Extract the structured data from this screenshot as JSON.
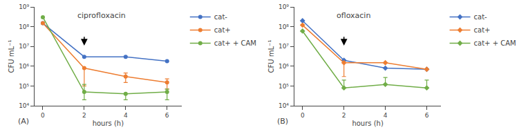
{
  "chart_data": [
    {
      "type": "line",
      "title": "ciprofloxacin",
      "panel_label": "(A)",
      "xlabel": "hours (h)",
      "ylabel": "CFU mL⁻¹",
      "x": [
        0,
        2,
        4,
        6
      ],
      "log": "y",
      "grid": false,
      "legend": "right",
      "marker": "circle",
      "xlim": [
        -0.4,
        6.7
      ],
      "xticks": [
        0,
        2,
        4,
        6
      ],
      "ylim": [
        10000.0,
        1000000000.0
      ],
      "yticks": [
        {
          "value": 10000.0,
          "label": "10⁴"
        },
        {
          "value": 100000.0,
          "label": "10⁵"
        },
        {
          "value": 1000000.0,
          "label": "10⁶"
        },
        {
          "value": 10000000.0,
          "label": "10⁷"
        },
        {
          "value": 100000000.0,
          "label": "10⁸"
        },
        {
          "value": 1000000000.0,
          "label": "10⁹"
        }
      ],
      "series": [
        {
          "name": "cat-",
          "color": "#4472C4",
          "values": [
            150000000.0,
            3000000.0,
            3000000.0,
            1800000.0
          ],
          "yerr_lo": [
            0,
            0,
            0,
            0
          ],
          "yerr_hi": [
            0,
            0,
            0,
            0
          ]
        },
        {
          "name": "cat+",
          "color": "#ED7D31",
          "values": [
            150000000.0,
            800000.0,
            300000.0,
            150000.0
          ],
          "yerr_lo": [
            0,
            700000.0,
            150000.0,
            80000.0
          ],
          "yerr_hi": [
            0,
            0,
            150000.0,
            80000.0
          ]
        },
        {
          "name": "cat+ + CAM",
          "color": "#70AD47",
          "values": [
            300000000.0,
            50000.0,
            40000.0,
            50000.0
          ],
          "yerr_lo": [
            0,
            30000.0,
            20000.0,
            30000.0
          ],
          "yerr_hi": [
            0,
            70000.0,
            0,
            20000.0
          ]
        }
      ],
      "arrow": {
        "x": 2,
        "y_tail": 35000000.0,
        "y_head": 11000000.0
      }
    },
    {
      "type": "line",
      "title": "ofloxacin",
      "panel_label": "(B)",
      "xlabel": "hours (h)",
      "ylabel": "CFU mL⁻¹",
      "x": [
        0,
        2,
        4,
        6
      ],
      "log": "y",
      "grid": false,
      "legend": "right",
      "marker": "diamond",
      "xlim": [
        -0.4,
        6.7
      ],
      "xticks": [
        0,
        2,
        4,
        6
      ],
      "ylim": [
        10000.0,
        1000000000.0
      ],
      "yticks": [
        {
          "value": 10000.0,
          "label": "10⁴"
        },
        {
          "value": 100000.0,
          "label": "10⁵"
        },
        {
          "value": 1000000.0,
          "label": "10⁶"
        },
        {
          "value": 10000000.0,
          "label": "10⁷"
        },
        {
          "value": 100000000.0,
          "label": "10⁸"
        },
        {
          "value": 1000000000.0,
          "label": "10⁹"
        }
      ],
      "series": [
        {
          "name": "cat-",
          "color": "#4472C4",
          "values": [
            200000000.0,
            2000000.0,
            800000.0,
            700000.0
          ],
          "yerr_lo": [
            0,
            0,
            0,
            0
          ],
          "yerr_hi": [
            0,
            0,
            0,
            0
          ]
        },
        {
          "name": "cat+",
          "color": "#ED7D31",
          "values": [
            120000000.0,
            1500000.0,
            1500000.0,
            700000.0
          ],
          "yerr_lo": [
            0,
            1200000.0,
            0,
            0
          ],
          "yerr_hi": [
            0,
            0,
            0,
            0
          ]
        },
        {
          "name": "cat+ + CAM",
          "color": "#70AD47",
          "values": [
            60000000.0,
            80000.0,
            120000.0,
            80000.0
          ],
          "yerr_lo": [
            0,
            0,
            0,
            0
          ],
          "yerr_hi": [
            0,
            120000.0,
            150000.0,
            120000.0
          ]
        }
      ],
      "arrow": {
        "x": 2,
        "y_tail": 35000000.0,
        "y_head": 11000000.0
      }
    }
  ]
}
